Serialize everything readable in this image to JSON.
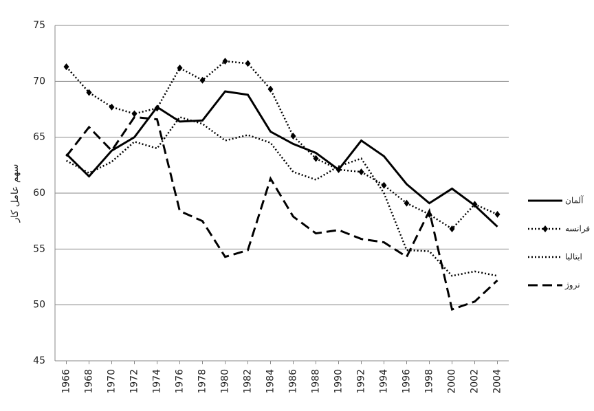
{
  "chart_data": {
    "type": "line",
    "y_label": "سهم عامل کار",
    "x": [
      1966,
      1968,
      1970,
      1972,
      1974,
      1976,
      1978,
      1980,
      1982,
      1984,
      1986,
      1988,
      1990,
      1992,
      1994,
      1996,
      1998,
      2000,
      2002,
      2004
    ],
    "xlim": [
      1965,
      2005
    ],
    "xticks": [
      1966,
      1968,
      1970,
      1972,
      1974,
      1976,
      1978,
      1980,
      1982,
      1984,
      1986,
      1988,
      1990,
      1992,
      1994,
      1996,
      1998,
      2000,
      2002,
      2004
    ],
    "ylim": [
      45,
      75
    ],
    "yticks": [
      45,
      50,
      55,
      60,
      65,
      70,
      75
    ],
    "grid": true,
    "legend": "right",
    "series": [
      {
        "name": "آلمان",
        "color": "#000000",
        "style": "solid",
        "values": [
          63.5,
          61.5,
          63.8,
          65.0,
          67.7,
          66.4,
          66.5,
          69.1,
          68.8,
          65.5,
          64.4,
          63.6,
          62.1,
          64.7,
          63.3,
          60.8,
          59.1,
          60.4,
          58.9,
          57.0
        ]
      },
      {
        "name": "فرانسه",
        "color": "#000000",
        "style": "dotted",
        "marker": "diamond",
        "values": [
          71.3,
          69.0,
          67.7,
          67.1,
          67.6,
          71.2,
          70.1,
          71.8,
          71.6,
          69.3,
          65.1,
          63.1,
          62.1,
          61.9,
          60.7,
          59.1,
          58.1,
          56.8,
          59.0,
          58.1
        ]
      },
      {
        "name": "ایتالیا",
        "color": "#000000",
        "style": "dotted",
        "values": [
          62.9,
          61.8,
          62.8,
          64.6,
          64.0,
          66.8,
          66.2,
          64.7,
          65.2,
          64.5,
          61.9,
          61.2,
          62.4,
          63.1,
          60.0,
          54.9,
          54.8,
          52.6,
          53.0,
          52.6
        ]
      },
      {
        "name": "نروژ",
        "color": "#000000",
        "style": "dashed",
        "values": [
          63.3,
          65.9,
          63.8,
          66.8,
          66.6,
          58.4,
          57.5,
          54.3,
          54.9,
          61.3,
          57.9,
          56.4,
          56.7,
          55.9,
          55.6,
          54.3,
          58.4,
          49.6,
          50.3,
          52.2
        ]
      }
    ]
  }
}
